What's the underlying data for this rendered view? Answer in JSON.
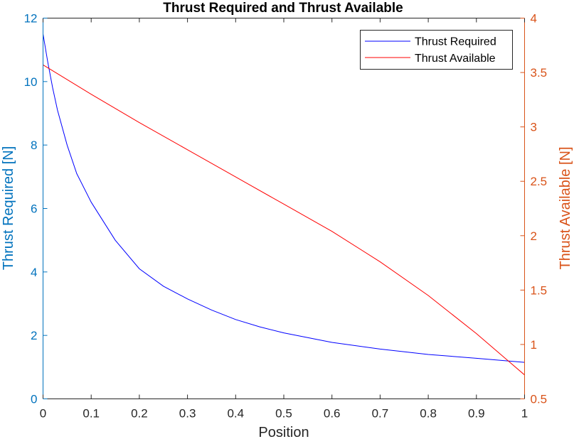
{
  "chart_data": {
    "type": "line",
    "title": "Thrust Required and Thrust Available",
    "xlabel": "Position",
    "ylabel_left": "Thrust Required [N]",
    "ylabel_right": "Thrust Available [N]",
    "xlim": [
      0,
      1
    ],
    "ylim_left": [
      0,
      12
    ],
    "ylim_right": [
      0.5,
      4
    ],
    "xticks": [
      0,
      0.1,
      0.2,
      0.3,
      0.4,
      0.5,
      0.6,
      0.7,
      0.8,
      0.9,
      1
    ],
    "xtick_labels": [
      "0",
      "0.1",
      "0.2",
      "0.3",
      "0.4",
      "0.5",
      "0.6",
      "0.7",
      "0.8",
      "0.9",
      "1"
    ],
    "yticks_left": [
      0,
      2,
      4,
      6,
      8,
      10,
      12
    ],
    "ytick_labels_left": [
      "0",
      "2",
      "4",
      "6",
      "8",
      "10",
      "12"
    ],
    "yticks_right": [
      0.5,
      1,
      1.5,
      2,
      2.5,
      3,
      3.5,
      4
    ],
    "ytick_labels_right": [
      "0.5",
      "1",
      "1.5",
      "2",
      "2.5",
      "3",
      "3.5",
      "4"
    ],
    "grid": false,
    "legend_position": "top-right",
    "colors": {
      "left_axis": "#0072BD",
      "right_axis": "#D95319",
      "thrust_required": "#0000FF",
      "thrust_available": "#FF0000",
      "frame": "#262626"
    },
    "series": [
      {
        "name": "Thrust Required",
        "axis": "left",
        "x": [
          0,
          0.01,
          0.02,
          0.03,
          0.05,
          0.07,
          0.1,
          0.15,
          0.2,
          0.25,
          0.3,
          0.35,
          0.4,
          0.45,
          0.5,
          0.6,
          0.7,
          0.8,
          0.9,
          1.0
        ],
        "y": [
          11.5,
          10.6,
          9.8,
          9.1,
          8.0,
          7.1,
          6.2,
          5.0,
          4.1,
          3.55,
          3.15,
          2.8,
          2.5,
          2.27,
          2.08,
          1.78,
          1.57,
          1.4,
          1.28,
          1.15
        ]
      },
      {
        "name": "Thrust Available",
        "axis": "right",
        "x": [
          0,
          0.1,
          0.2,
          0.3,
          0.4,
          0.5,
          0.6,
          0.7,
          0.8,
          0.9,
          1.0
        ],
        "y": [
          3.57,
          3.3,
          3.04,
          2.79,
          2.54,
          2.29,
          2.04,
          1.76,
          1.45,
          1.1,
          0.72
        ]
      }
    ]
  }
}
